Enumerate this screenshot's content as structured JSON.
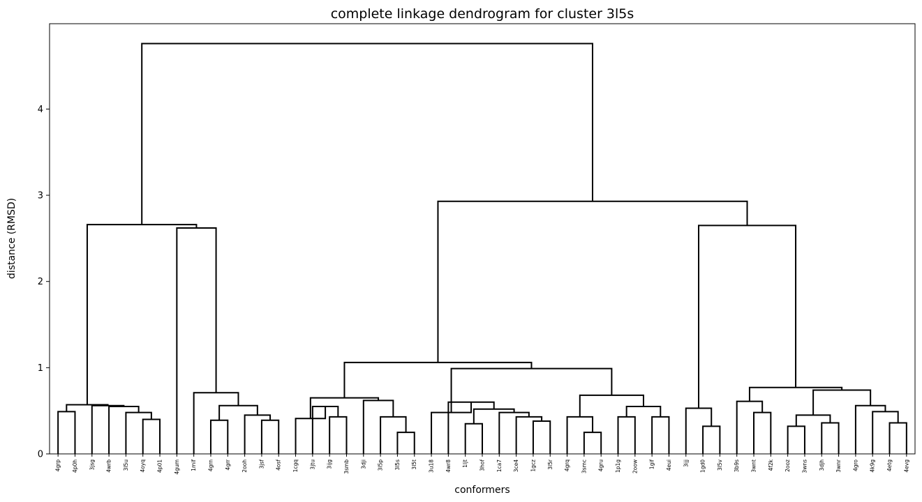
{
  "chart_data": {
    "type": "dendrogram",
    "title": "complete linkage dendrogram for cluster 3l5s",
    "xlabel": "conformers",
    "ylabel": "distance (RMSD)",
    "ylim": [
      0,
      4.99
    ],
    "yticks": [
      0,
      1,
      2,
      3,
      4
    ],
    "grid": false,
    "leaves": [
      "4grp",
      "4p0h",
      "3jsg",
      "4wrb",
      "3l5u",
      "4oyq",
      "4p01",
      "4gum",
      "1mif",
      "4grn",
      "4grr",
      "2ooh",
      "3jsf",
      "4osf",
      "1cgq",
      "3jtu",
      "3ijg",
      "3smb",
      "3dji",
      "3l5p",
      "3l5s",
      "3l5t",
      "3u18",
      "4wr8",
      "1ljt",
      "3hof",
      "1ca7",
      "3ce4",
      "1gcz",
      "3l5r",
      "4grq",
      "3smc",
      "4gru",
      "1p1g",
      "2oow",
      "1gif",
      "4eui",
      "3ijj",
      "1gd0",
      "3l5v",
      "3b9s",
      "3wnt",
      "4f2k",
      "2ooz",
      "3wns",
      "3djh",
      "3wnr",
      "4gro",
      "4k9g",
      "4etg",
      "4evg"
    ],
    "merges": [
      {
        "left": "L0",
        "right": "L1",
        "height": 0.49
      },
      {
        "left": "L5",
        "right": "L6",
        "height": 0.4
      },
      {
        "left": "L4",
        "right": "M1",
        "height": 0.48
      },
      {
        "left": "L3",
        "right": "M2",
        "height": 0.55
      },
      {
        "left": "L2",
        "right": "M3",
        "height": 0.56
      },
      {
        "left": "M0",
        "right": "M4",
        "height": 0.57
      },
      {
        "left": "L9",
        "right": "L10",
        "height": 0.39
      },
      {
        "left": "L12",
        "right": "L13",
        "height": 0.39
      },
      {
        "left": "L11",
        "right": "M7",
        "height": 0.45
      },
      {
        "left": "M6",
        "right": "M8",
        "height": 0.56
      },
      {
        "left": "L8",
        "right": "M9",
        "height": 0.71
      },
      {
        "left": "L7",
        "right": "M10",
        "height": 2.62
      },
      {
        "left": "M5",
        "right": "M11",
        "height": 2.66
      },
      {
        "left": "L16",
        "right": "L17",
        "height": 0.43
      },
      {
        "left": "L15",
        "right": "M13",
        "height": 0.55
      },
      {
        "left": "L14",
        "right": "M14",
        "height": 0.41
      },
      {
        "left": "L20",
        "right": "L21",
        "height": 0.25
      },
      {
        "left": "L19",
        "right": "M16",
        "height": 0.43
      },
      {
        "left": "L18",
        "right": "M17",
        "height": 0.62
      },
      {
        "left": "M15",
        "right": "M18",
        "height": 0.65
      },
      {
        "left": "L24",
        "right": "L25",
        "height": 0.35
      },
      {
        "left": "L28",
        "right": "L29",
        "height": 0.38
      },
      {
        "left": "L27",
        "right": "M21",
        "height": 0.43
      },
      {
        "left": "L26",
        "right": "M22",
        "height": 0.48
      },
      {
        "left": "M20",
        "right": "M23",
        "height": 0.52
      },
      {
        "left": "L23",
        "right": "M24",
        "height": 0.6
      },
      {
        "left": "L22",
        "right": "M25",
        "height": 0.48
      },
      {
        "left": "L31",
        "right": "L32",
        "height": 0.25
      },
      {
        "left": "L30",
        "right": "M27",
        "height": 0.43
      },
      {
        "left": "L33",
        "right": "L34",
        "height": 0.43
      },
      {
        "left": "L35",
        "right": "L36",
        "height": 0.43
      },
      {
        "left": "M29",
        "right": "M30",
        "height": 0.55
      },
      {
        "left": "M28",
        "right": "M31",
        "height": 0.68
      },
      {
        "left": "M26",
        "right": "M32",
        "height": 0.99
      },
      {
        "left": "M19",
        "right": "M33",
        "height": 1.06
      },
      {
        "left": "L38",
        "right": "L39",
        "height": 0.32
      },
      {
        "left": "L37",
        "right": "M35",
        "height": 0.53
      },
      {
        "left": "L41",
        "right": "L42",
        "height": 0.48
      },
      {
        "left": "L40",
        "right": "M37",
        "height": 0.61
      },
      {
        "left": "L43",
        "right": "L44",
        "height": 0.32
      },
      {
        "left": "L45",
        "right": "L46",
        "height": 0.36
      },
      {
        "left": "M39",
        "right": "M40",
        "height": 0.45
      },
      {
        "left": "L49",
        "right": "L50",
        "height": 0.36
      },
      {
        "left": "L48",
        "right": "M42",
        "height": 0.49
      },
      {
        "left": "L47",
        "right": "M43",
        "height": 0.56
      },
      {
        "left": "M41",
        "right": "M44",
        "height": 0.74
      },
      {
        "left": "M38",
        "right": "M45",
        "height": 0.77
      },
      {
        "left": "M36",
        "right": "M46",
        "height": 2.65
      },
      {
        "left": "M34",
        "right": "M47",
        "height": 2.93
      },
      {
        "left": "M12",
        "right": "M48",
        "height": 4.76
      }
    ]
  }
}
